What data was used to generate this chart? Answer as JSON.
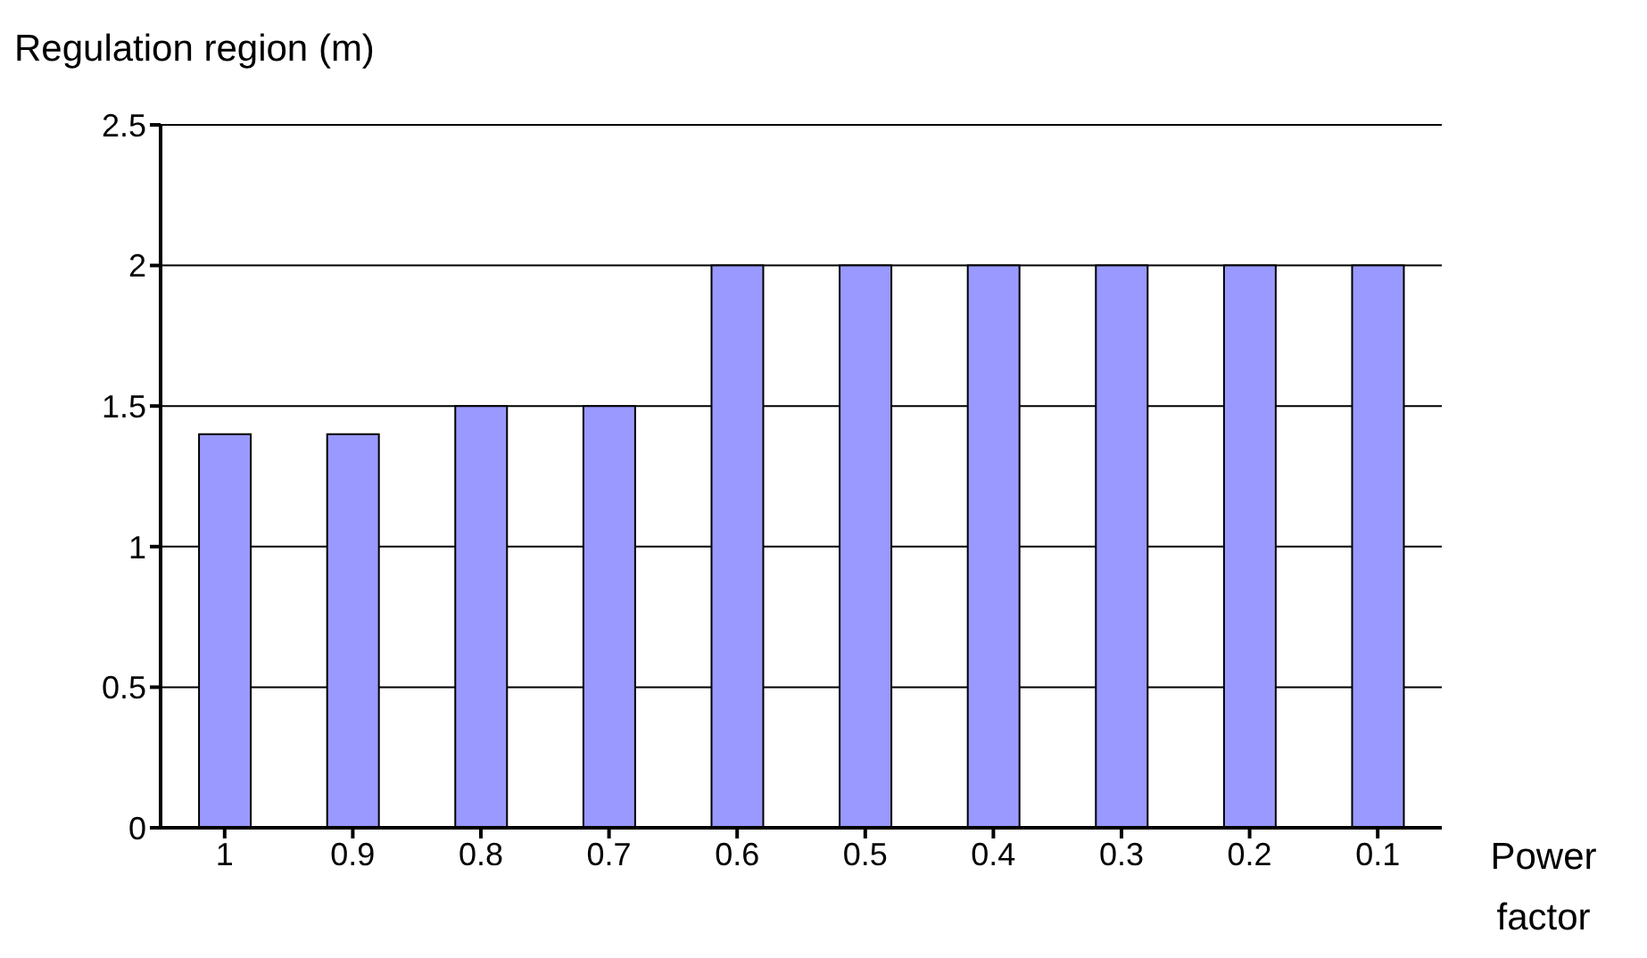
{
  "chart_data": {
    "type": "bar",
    "ylabel": "Regulation region (m)",
    "xlabel": "Power factor",
    "categories": [
      "1",
      "0.9",
      "0.8",
      "0.7",
      "0.6",
      "0.5",
      "0.4",
      "0.3",
      "0.2",
      "0.1"
    ],
    "values": [
      1.4,
      1.4,
      1.5,
      1.5,
      2,
      2,
      2,
      2,
      2,
      2
    ],
    "color": "#9999ff",
    "ylim": [
      0,
      2.5
    ],
    "yticks": [
      0,
      0.5,
      1,
      1.5,
      2,
      2.5
    ],
    "grid": "y"
  }
}
